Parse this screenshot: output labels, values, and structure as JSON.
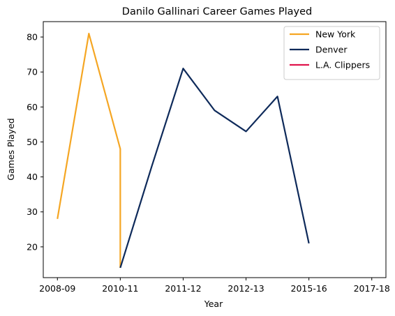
{
  "chart_data": {
    "type": "line",
    "title": "Danilo Gallinari Career Games Played",
    "xlabel": "Year",
    "ylabel": "Games Played",
    "x_tick_labels": [
      "2008-09",
      "2010-11",
      "2011-12",
      "2012-13",
      "2015-16",
      "2017-18"
    ],
    "x_tick_positions": [
      0,
      2,
      4,
      6,
      8,
      10
    ],
    "xlim": [
      -0.45,
      10.45
    ],
    "y_ticks": [
      20,
      30,
      40,
      50,
      60,
      70,
      80
    ],
    "ylim": [
      11.2,
      84.4
    ],
    "grid": false,
    "legend_position": "top-right",
    "series": [
      {
        "name": "New York",
        "color": "#F5A623",
        "x": [
          0,
          1,
          2,
          2
        ],
        "y": [
          28,
          81,
          48,
          14
        ]
      },
      {
        "name": "Denver",
        "color": "#0E2A5A",
        "x": [
          2,
          3,
          4,
          5,
          6,
          7,
          8
        ],
        "y": [
          14,
          43,
          71,
          59,
          53,
          63,
          21
        ]
      },
      {
        "name": "L.A. Clippers",
        "color": "#E0144C",
        "x": [],
        "y": []
      }
    ]
  }
}
